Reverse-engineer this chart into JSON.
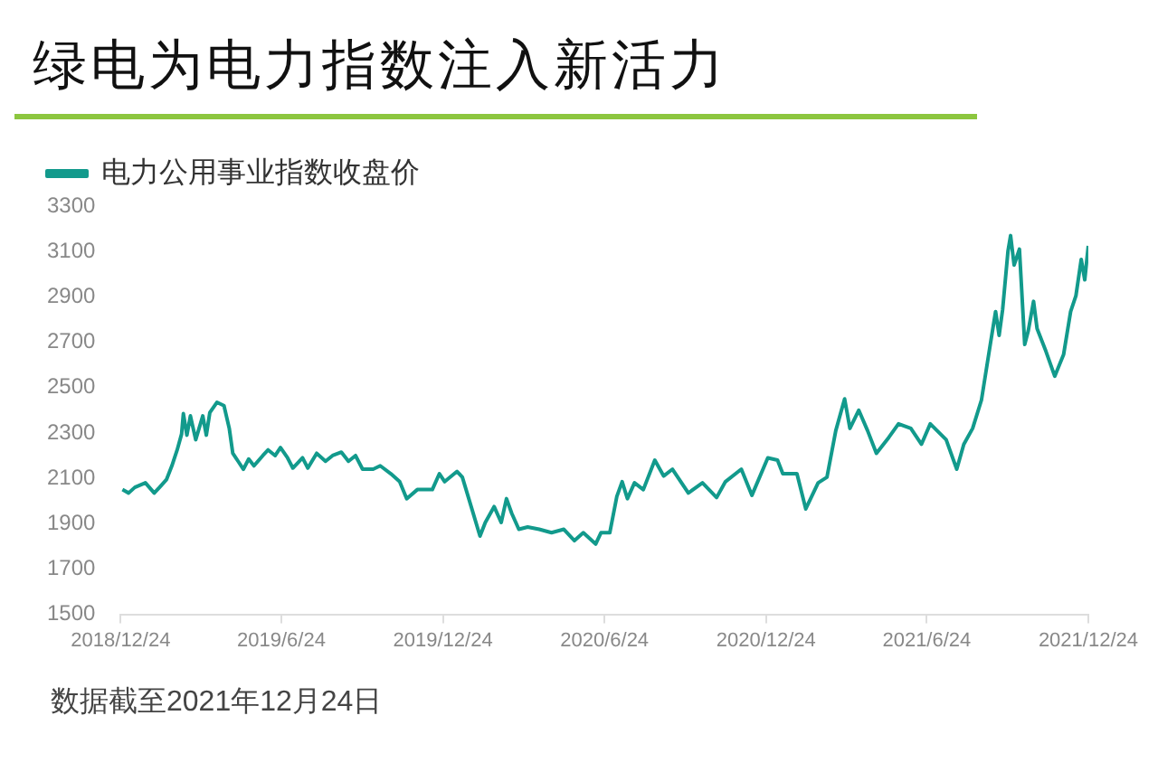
{
  "chart_data": {
    "type": "line",
    "title": "绿电为电力指数注入新活力",
    "annotations": [
      "数据截至2021年12月24日"
    ],
    "legend": "top left",
    "grid": false,
    "marker": "none",
    "line_style": "solid",
    "xlim": [
      "2018-12-24",
      "2021-12-24"
    ],
    "xticks": [
      {
        "value": "2018-12-24",
        "label": "2018/12/24"
      },
      {
        "value": "2019-06-24",
        "label": "2019/6/24"
      },
      {
        "value": "2019-12-24",
        "label": "2019/12/24"
      },
      {
        "value": "2020-06-24",
        "label": "2020/6/24"
      },
      {
        "value": "2020-12-24",
        "label": "2020/12/24"
      },
      {
        "value": "2021-06-24",
        "label": "2021/6/24"
      },
      {
        "value": "2021-12-24",
        "label": "2021/12/24"
      }
    ],
    "ylim": [
      1500,
      3300
    ],
    "yticks": [
      1500,
      1700,
      1900,
      2100,
      2300,
      2500,
      2700,
      2900,
      3100,
      3300
    ],
    "x": [
      "2018-12-26",
      "2019-01-02",
      "2019-01-09",
      "2019-01-21",
      "2019-01-31",
      "2019-02-06",
      "2019-02-14",
      "2019-02-20",
      "2019-02-26",
      "2019-03-03",
      "2019-03-05",
      "2019-03-09",
      "2019-03-13",
      "2019-03-19",
      "2019-03-27",
      "2019-03-31",
      "2019-04-04",
      "2019-04-12",
      "2019-04-20",
      "2019-04-26",
      "2019-04-30",
      "2019-05-06",
      "2019-05-12",
      "2019-05-18",
      "2019-05-24",
      "2019-06-03",
      "2019-06-09",
      "2019-06-17",
      "2019-06-23",
      "2019-07-01",
      "2019-07-07",
      "2019-07-18",
      "2019-07-24",
      "2019-08-03",
      "2019-08-13",
      "2019-08-21",
      "2019-08-31",
      "2019-09-08",
      "2019-09-16",
      "2019-09-24",
      "2019-10-06",
      "2019-10-14",
      "2019-10-26",
      "2019-11-05",
      "2019-11-13",
      "2019-11-25",
      "2019-12-12",
      "2019-12-20",
      "2019-12-26",
      "2020-01-09",
      "2020-01-15",
      "2020-01-25",
      "2020-02-04",
      "2020-02-10",
      "2020-02-20",
      "2020-02-28",
      "2020-03-05",
      "2020-03-11",
      "2020-03-19",
      "2020-03-29",
      "2020-04-11",
      "2020-04-25",
      "2020-05-09",
      "2020-05-21",
      "2020-05-31",
      "2020-06-14",
      "2020-06-20",
      "2020-06-30",
      "2020-07-08",
      "2020-07-14",
      "2020-07-20",
      "2020-07-28",
      "2020-08-07",
      "2020-08-20",
      "2020-08-30",
      "2020-09-09",
      "2020-09-27",
      "2020-10-13",
      "2020-10-29",
      "2020-11-08",
      "2020-11-26",
      "2020-12-08",
      "2020-12-26",
      "2021-01-06",
      "2021-01-12",
      "2021-01-28",
      "2021-02-07",
      "2021-02-21",
      "2021-03-03",
      "2021-03-13",
      "2021-03-23",
      "2021-03-29",
      "2021-04-08",
      "2021-04-18",
      "2021-04-28",
      "2021-05-12",
      "2021-05-23",
      "2021-06-06",
      "2021-06-18",
      "2021-06-28",
      "2021-07-16",
      "2021-07-28",
      "2021-08-05",
      "2021-08-15",
      "2021-08-25",
      "2021-09-04",
      "2021-09-10",
      "2021-09-14",
      "2021-09-18",
      "2021-09-24",
      "2021-09-27",
      "2021-10-01",
      "2021-10-07",
      "2021-10-13",
      "2021-10-17",
      "2021-10-23",
      "2021-10-27",
      "2021-11-06",
      "2021-11-16",
      "2021-11-26",
      "2021-12-04",
      "2021-12-10",
      "2021-12-16",
      "2021-12-20",
      "2021-12-24"
    ],
    "series": [
      {
        "name": "电力公用事业指数收盘价",
        "color": "#129a8c",
        "values": [
          2050,
          2035,
          2060,
          2080,
          2035,
          2060,
          2095,
          2155,
          2225,
          2295,
          2385,
          2290,
          2375,
          2270,
          2375,
          2290,
          2390,
          2435,
          2420,
          2320,
          2210,
          2175,
          2140,
          2185,
          2155,
          2200,
          2225,
          2200,
          2235,
          2190,
          2145,
          2190,
          2145,
          2210,
          2175,
          2200,
          2215,
          2175,
          2200,
          2140,
          2140,
          2155,
          2120,
          2085,
          2010,
          2050,
          2050,
          2120,
          2085,
          2130,
          2105,
          1975,
          1845,
          1905,
          1975,
          1905,
          2010,
          1945,
          1875,
          1885,
          1875,
          1860,
          1875,
          1825,
          1860,
          1810,
          1860,
          1860,
          2020,
          2085,
          2010,
          2080,
          2050,
          2180,
          2110,
          2140,
          2035,
          2080,
          2015,
          2085,
          2140,
          2025,
          2190,
          2180,
          2120,
          2120,
          1965,
          2080,
          2105,
          2310,
          2450,
          2320,
          2400,
          2310,
          2210,
          2280,
          2340,
          2320,
          2250,
          2340,
          2270,
          2140,
          2250,
          2320,
          2445,
          2690,
          2835,
          2730,
          2845,
          3100,
          3170,
          3040,
          3110,
          2690,
          2750,
          2880,
          2760,
          2660,
          2550,
          2645,
          2835,
          2905,
          3065,
          2975,
          3125
        ]
      }
    ]
  }
}
